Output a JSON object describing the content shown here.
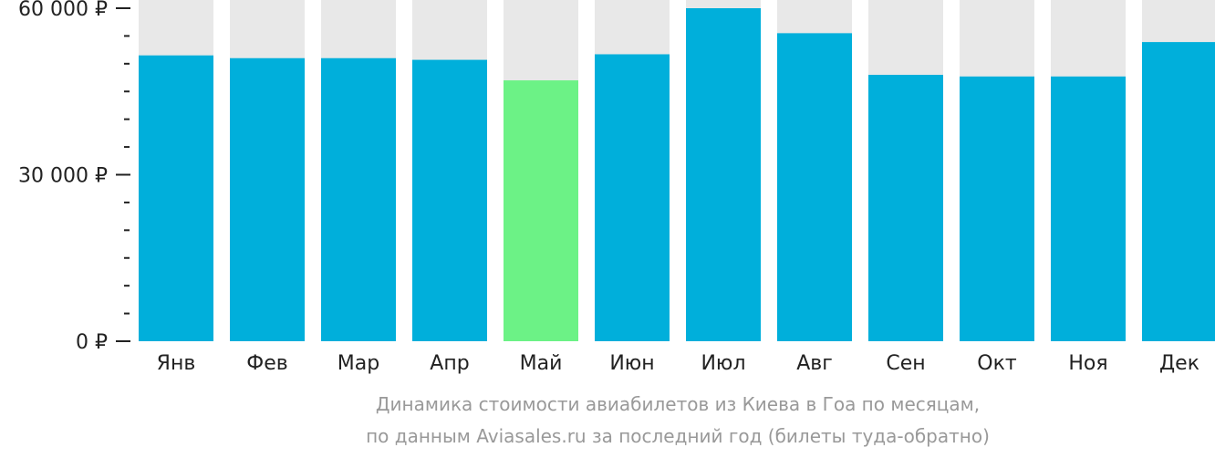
{
  "chart_data": {
    "type": "bar",
    "categories": [
      "Янв",
      "Фев",
      "Мар",
      "Апр",
      "Май",
      "Июн",
      "Июл",
      "Авг",
      "Сен",
      "Окт",
      "Ноя",
      "Дек"
    ],
    "values": [
      51500,
      51000,
      51000,
      50700,
      47000,
      51700,
      60000,
      55500,
      48000,
      47700,
      47700,
      53900
    ],
    "highlight_index": 4,
    "ylim": [
      0,
      60000
    ],
    "yticks": [
      {
        "value": 0,
        "label": "0 ₽"
      },
      {
        "value": 30000,
        "label": "30 000 ₽"
      },
      {
        "value": 60000,
        "label": "60 000 ₽"
      }
    ],
    "minor_tick_step": 5000,
    "colors": {
      "bar": "#00afdb",
      "highlight": "#6cf286",
      "background_track": "#e8e8e8",
      "axis_ticks": "#222222"
    }
  },
  "caption": {
    "line1": "Динамика стоимости авиабилетов из Киева в Гоа по месяцам,",
    "line2": "по данным Aviasales.ru за последний год (билеты туда-обратно)"
  }
}
